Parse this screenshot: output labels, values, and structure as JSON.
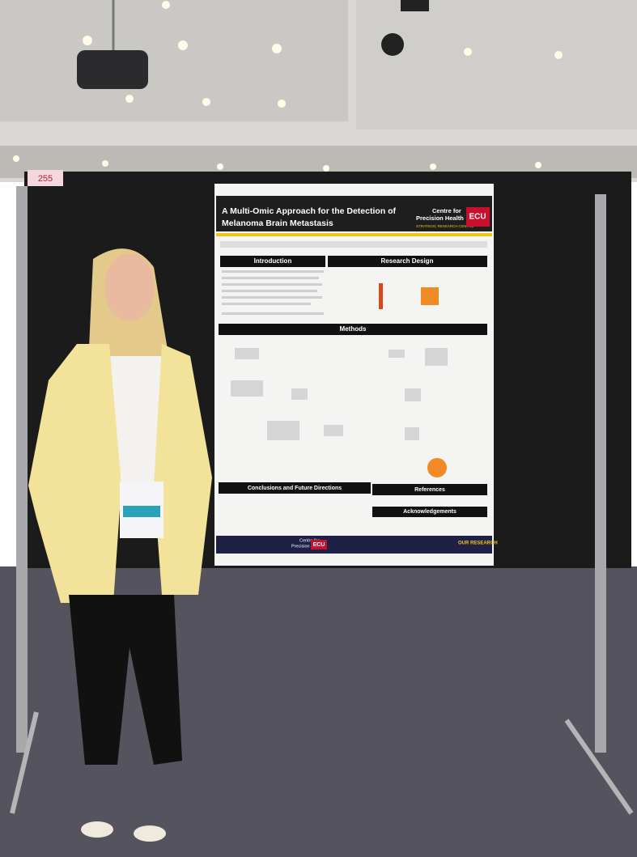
{
  "booth_number": "255",
  "poster": {
    "title_line1": "A Multi-Omic Approach for the Detection of",
    "title_line2": "Melanoma Brain Metastasis",
    "logo": {
      "line1": "Centre for",
      "line2": "Precision Health",
      "tagline": "STRATEGIC RESEARCH CENTRE",
      "brand": "ECU"
    },
    "sections": [
      "Introduction",
      "Research Design",
      "Methods",
      "Conclusions and Future Directions",
      "References",
      "Acknowledgements"
    ],
    "footer": {
      "centre_line1": "Centre for",
      "centre_line2": "Precision Health",
      "brand": "ECU",
      "heading": "OUR RESEARCH"
    }
  }
}
